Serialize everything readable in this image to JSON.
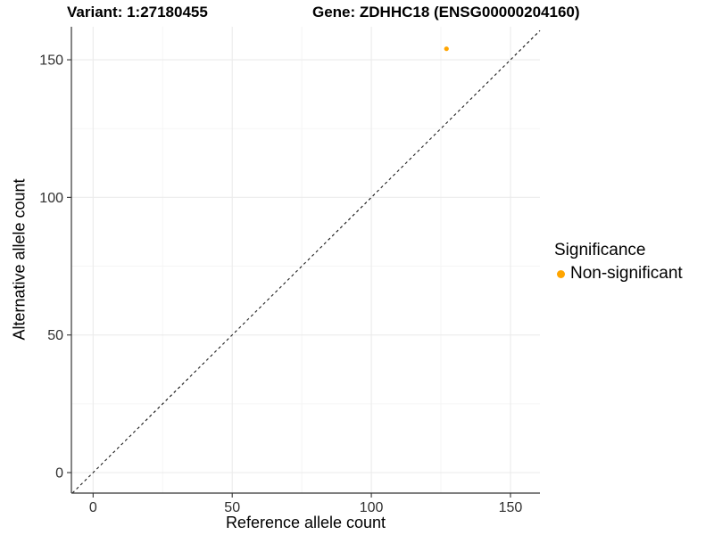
{
  "header": {
    "title_left": "Variant: 1:27180455",
    "title_right": "Gene: ZDHHC18 (ENSG00000204160)"
  },
  "chart_data": {
    "type": "scatter",
    "title_left": "Variant: 1:27180455",
    "title_right": "Gene: ZDHHC18 (ENSG00000204160)",
    "xlabel": "Reference allele count",
    "ylabel": "Alternative allele count",
    "x_ticks": [
      0,
      50,
      100,
      150
    ],
    "y_ticks": [
      0,
      50,
      100,
      150
    ],
    "x_minor_ticks": [
      25,
      75,
      125
    ],
    "y_minor_ticks": [
      25,
      75,
      125
    ],
    "xlim": [
      -7.8,
      160.6
    ],
    "ylim": [
      -7.45,
      162.0
    ],
    "grid": "on",
    "points": [
      {
        "x": 127,
        "y": 154,
        "series": "Non-significant"
      }
    ],
    "reference_line": {
      "kind": "identity",
      "equation": "y = x",
      "style": "dashed"
    },
    "legend": {
      "title": "Significance",
      "position": "right",
      "items": [
        {
          "label": "Non-significant",
          "color": "#FFA500"
        }
      ]
    },
    "colors": {
      "point": "#FFA500",
      "grid_major": "#EBEBEB",
      "grid_minor": "#F5F5F5",
      "axis": "#333333",
      "tick_label": "#303030",
      "identity_line": "#1A1A1A",
      "background": "#FFFFFF"
    }
  }
}
